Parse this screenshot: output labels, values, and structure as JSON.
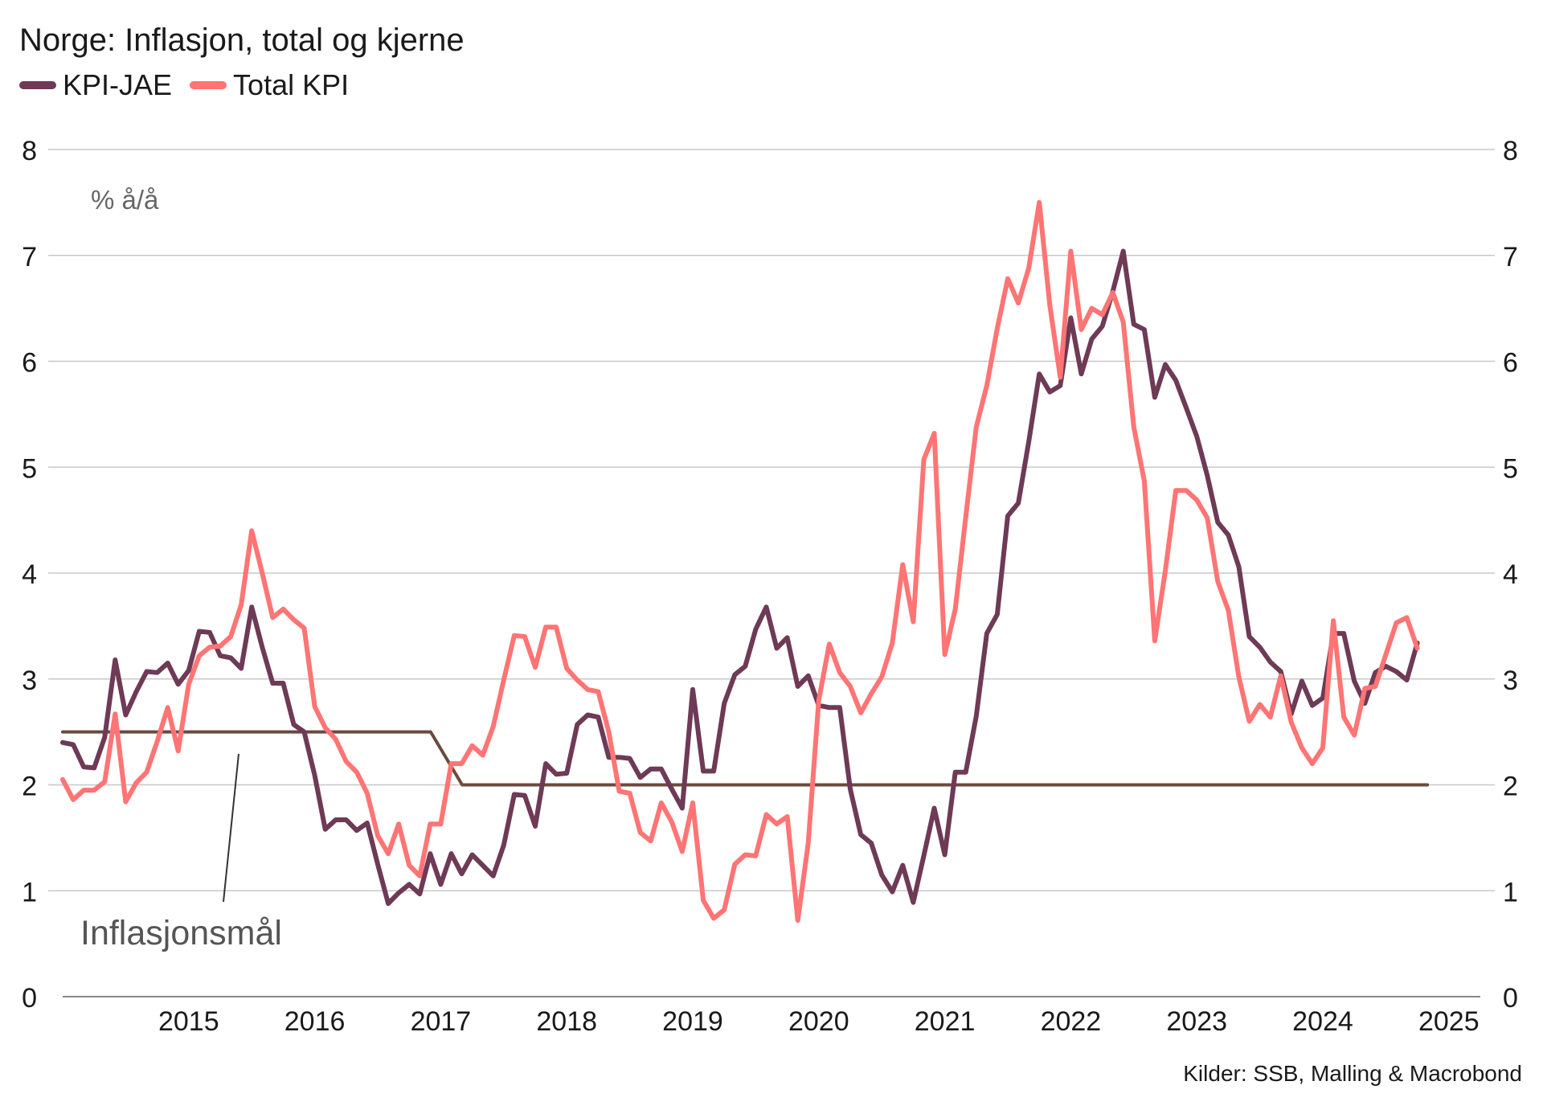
{
  "chart_data": {
    "type": "line",
    "title": "Norge: Inflasjon, total og kjerne",
    "unit_label": "% å/å",
    "source": "Kilder: SSB, Malling & Macrobond",
    "annotation": "Inflasjonsmål",
    "ylim": [
      0,
      8
    ],
    "yticks": [
      0,
      1,
      2,
      3,
      4,
      5,
      6,
      7,
      8
    ],
    "x_tick_labels": [
      "2015",
      "2016",
      "2017",
      "2018",
      "2019",
      "2020",
      "2021",
      "2022",
      "2023",
      "2024",
      "2025"
    ],
    "x_ticks": [
      2015,
      2016,
      2017,
      2018,
      2019,
      2020,
      2021,
      2022,
      2023,
      2024,
      2025
    ],
    "xlim": [
      2014.5,
      2025.75
    ],
    "grid": true,
    "series": [
      {
        "name": "KPI-JAE",
        "color": "#6e3a56",
        "start": 2014.5,
        "step": 0.0833333,
        "values": [
          2.4,
          2.38,
          2.17,
          2.16,
          2.45,
          3.18,
          2.66,
          2.88,
          3.07,
          3.06,
          3.15,
          2.95,
          3.08,
          3.45,
          3.44,
          3.22,
          3.2,
          3.1,
          3.68,
          3.3,
          2.96,
          2.96,
          2.57,
          2.5,
          2.09,
          1.58,
          1.67,
          1.67,
          1.57,
          1.64,
          1.25,
          0.88,
          0.98,
          1.06,
          0.97,
          1.35,
          1.06,
          1.35,
          1.16,
          1.34,
          1.24,
          1.14,
          1.43,
          1.91,
          1.9,
          1.61,
          2.2,
          2.1,
          2.11,
          2.57,
          2.66,
          2.64,
          2.26,
          2.26,
          2.25,
          2.07,
          2.15,
          2.15,
          1.96,
          1.78,
          2.9,
          2.13,
          2.13,
          2.77,
          3.04,
          3.12,
          3.47,
          3.68,
          3.29,
          3.39,
          2.93,
          3.03,
          2.75,
          2.73,
          2.73,
          1.96,
          1.53,
          1.45,
          1.15,
          0.99,
          1.24,
          0.89,
          1.33,
          1.78,
          1.34,
          2.12,
          2.12,
          2.65,
          3.43,
          3.61,
          4.54,
          4.66,
          5.24,
          5.88,
          5.71,
          5.77,
          6.41,
          5.88,
          6.21,
          6.33,
          6.66,
          7.04,
          6.35,
          6.3,
          5.66,
          5.97,
          5.82,
          5.56,
          5.29,
          4.92,
          4.48,
          4.36,
          4.06,
          3.4,
          3.3,
          3.16,
          3.07,
          2.67,
          2.98,
          2.75,
          2.82,
          3.43,
          3.43,
          2.98,
          2.77,
          3.06,
          3.12,
          3.07,
          2.99,
          3.34
        ]
      },
      {
        "name": "Total KPI",
        "color": "#ff7474",
        "start": 2014.5,
        "step": 0.0833333,
        "values": [
          2.05,
          1.86,
          1.95,
          1.95,
          2.03,
          2.67,
          1.84,
          2.02,
          2.12,
          2.41,
          2.73,
          2.32,
          2.95,
          3.22,
          3.3,
          3.31,
          3.4,
          3.7,
          4.4,
          4.0,
          3.58,
          3.66,
          3.56,
          3.48,
          2.74,
          2.54,
          2.43,
          2.22,
          2.12,
          1.92,
          1.52,
          1.35,
          1.63,
          1.24,
          1.14,
          1.63,
          1.63,
          2.2,
          2.2,
          2.37,
          2.28,
          2.55,
          2.99,
          3.41,
          3.4,
          3.11,
          3.49,
          3.49,
          3.1,
          2.99,
          2.9,
          2.88,
          2.5,
          1.94,
          1.92,
          1.55,
          1.47,
          1.83,
          1.65,
          1.37,
          1.83,
          0.91,
          0.74,
          0.82,
          1.25,
          1.34,
          1.33,
          1.72,
          1.63,
          1.7,
          0.72,
          1.45,
          2.8,
          3.33,
          3.06,
          2.93,
          2.68,
          2.86,
          3.02,
          3.34,
          4.08,
          3.54,
          5.07,
          5.32,
          3.23,
          3.66,
          4.53,
          5.38,
          5.77,
          6.31,
          6.78,
          6.55,
          6.88,
          7.5,
          6.53,
          5.85,
          7.04,
          6.3,
          6.5,
          6.44,
          6.65,
          6.37,
          5.38,
          4.87,
          3.36,
          4.02,
          4.78,
          4.78,
          4.69,
          4.52,
          3.92,
          3.65,
          3.02,
          2.6,
          2.76,
          2.64,
          3.03,
          2.59,
          2.35,
          2.2,
          2.35,
          3.55,
          2.64,
          2.47,
          2.91,
          2.93,
          3.23,
          3.53,
          3.58,
          3.29
        ]
      },
      {
        "name": "Inflasjonsmål",
        "color": "#6b4a3e",
        "points": [
          [
            2014.5,
            2.5
          ],
          [
            2017.42,
            2.5
          ],
          [
            2017.67,
            2.0
          ],
          [
            2025.33,
            2.0
          ]
        ]
      }
    ]
  }
}
